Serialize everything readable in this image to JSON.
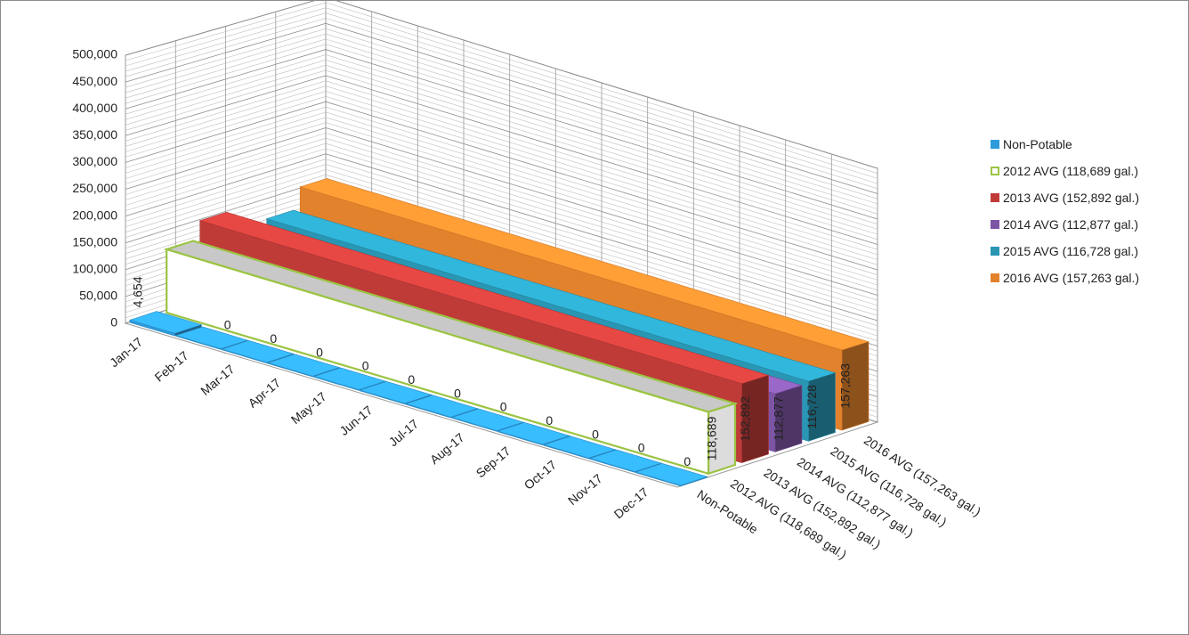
{
  "chart_data": {
    "type": "bar",
    "title": "",
    "categories": [
      "Jan-17",
      "Feb-17",
      "Mar-17",
      "Apr-17",
      "May-17",
      "Jun-17",
      "Jul-17",
      "Aug-17",
      "Sep-17",
      "Oct-17",
      "Nov-17",
      "Dec-17"
    ],
    "y_ticks": [
      "0",
      "50,000",
      "100,000",
      "150,000",
      "200,000",
      "250,000",
      "300,000",
      "350,000",
      "400,000",
      "450,000",
      "500,000"
    ],
    "ylim": [
      0,
      500000
    ],
    "grid": true,
    "legend_position": "right",
    "series": [
      {
        "name": "Non-Potable",
        "color": "#2e9bdc",
        "outline": false,
        "values": [
          4654,
          0,
          0,
          0,
          0,
          0,
          0,
          0,
          0,
          0,
          0,
          0
        ],
        "data_labels": [
          "4,654",
          "0",
          "0",
          "0",
          "0",
          "0",
          "0",
          "0",
          "0",
          "0",
          "0",
          "0"
        ]
      },
      {
        "name": "2012 AVG (118,689 gal.)",
        "color": "#9bc443",
        "outline": true,
        "values": [
          118689,
          118689,
          118689,
          118689,
          118689,
          118689,
          118689,
          118689,
          118689,
          118689,
          118689,
          118689
        ],
        "end_label": "118,689"
      },
      {
        "name": "2013 AVG (152,892 gal.)",
        "color": "#be3b38",
        "outline": false,
        "values": [
          152892,
          152892,
          152892,
          152892,
          152892,
          152892,
          152892,
          152892,
          152892,
          152892,
          152892,
          152892
        ],
        "end_label": "152,892"
      },
      {
        "name": "2014 AVG (112,877 gal.)",
        "color": "#7d55a5",
        "outline": false,
        "values": [
          112877,
          112877,
          112877,
          112877,
          112877,
          112877,
          112877,
          112877,
          112877,
          112877,
          112877,
          112877
        ],
        "end_label": "112,877"
      },
      {
        "name": "2015 AVG (116,728 gal.)",
        "color": "#2996b4",
        "outline": false,
        "values": [
          116728,
          116728,
          116728,
          116728,
          116728,
          116728,
          116728,
          116728,
          116728,
          116728,
          116728,
          116728
        ],
        "end_label": "116,728"
      },
      {
        "name": "2016 AVG (157,263 gal.)",
        "color": "#e3822c",
        "outline": false,
        "values": [
          157263,
          157263,
          157263,
          157263,
          157263,
          157263,
          157263,
          157263,
          157263,
          157263,
          157263,
          157263
        ],
        "end_label": "157,263"
      }
    ]
  }
}
